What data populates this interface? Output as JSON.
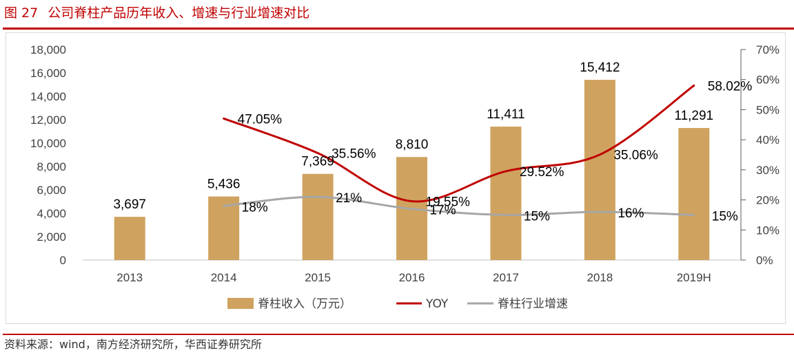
{
  "header": {
    "figure_number": "图 27",
    "title": "公司脊柱产品历年收入、增速与行业增速对比"
  },
  "source": "资料来源：wind，南方经济研究所，华西证券研究所",
  "colors": {
    "brand_red": "#c00000",
    "bar": "#cfa35f",
    "yoy_line": "#c00000",
    "industry_line": "#a6a6a6"
  },
  "chart_data": {
    "type": "bar",
    "title": "公司脊柱产品历年收入、增速与行业增速对比",
    "categories": [
      "2013",
      "2014",
      "2015",
      "2016",
      "2017",
      "2018",
      "2019H"
    ],
    "left_axis": {
      "ylim": [
        0,
        18000
      ],
      "ticks": [
        0,
        2000,
        4000,
        6000,
        8000,
        10000,
        12000,
        14000,
        16000,
        18000
      ],
      "tick_labels": [
        "0",
        "2,000",
        "4,000",
        "6,000",
        "8,000",
        "10,000",
        "12,000",
        "14,000",
        "16,000",
        "18,000"
      ]
    },
    "right_axis": {
      "ylim": [
        0,
        70
      ],
      "ticks": [
        0,
        10,
        20,
        30,
        40,
        50,
        60,
        70
      ],
      "tick_labels": [
        "0%",
        "10%",
        "20%",
        "30%",
        "40%",
        "50%",
        "60%",
        "70%"
      ]
    },
    "series": [
      {
        "name": "脊柱收入（万元）",
        "type": "bar",
        "axis": "left",
        "values": [
          3697,
          5436,
          7369,
          8810,
          11411,
          15412,
          11291
        ],
        "labels": [
          "3,697",
          "5,436",
          "7,369",
          "8,810",
          "11,411",
          "15,412",
          "11,291"
        ]
      },
      {
        "name": "YOY",
        "type": "line",
        "axis": "right",
        "values": [
          null,
          47.05,
          35.56,
          19.55,
          29.52,
          35.06,
          58.02
        ],
        "labels": [
          "",
          "47.05%",
          "35.56%",
          "19.55%",
          "29.52%",
          "35.06%",
          "58.02%"
        ]
      },
      {
        "name": "脊柱行业增速",
        "type": "line",
        "axis": "right",
        "values": [
          null,
          18,
          21,
          17,
          15,
          16,
          15
        ],
        "labels": [
          "",
          "18%",
          "21%",
          "17%",
          "15%",
          "16%",
          "15%"
        ]
      }
    ],
    "legend_position": "bottom-center"
  }
}
